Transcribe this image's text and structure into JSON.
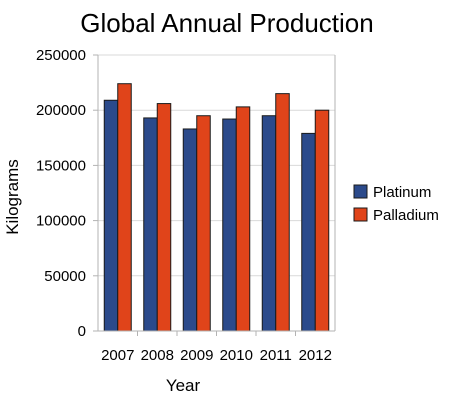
{
  "chart_data": {
    "type": "bar",
    "title": "Global Annual Production",
    "xlabel": "Year",
    "ylabel": "Kilograms",
    "categories": [
      "2007",
      "2008",
      "2009",
      "2010",
      "2011",
      "2012"
    ],
    "series": [
      {
        "name": "Platinum",
        "color": "#2b4a8b",
        "values": [
          209000,
          193000,
          183000,
          192000,
          195000,
          179000
        ]
      },
      {
        "name": "Palladium",
        "color": "#e0441a",
        "values": [
          224000,
          206000,
          195000,
          203000,
          215000,
          200000
        ]
      }
    ],
    "ylim": [
      0,
      250000
    ],
    "yticks": [
      0,
      50000,
      100000,
      150000,
      200000,
      250000
    ],
    "ytick_labels": [
      "0",
      "50000",
      "100000",
      "150000",
      "200000",
      "250000"
    ],
    "grid": true,
    "legend": "right"
  }
}
